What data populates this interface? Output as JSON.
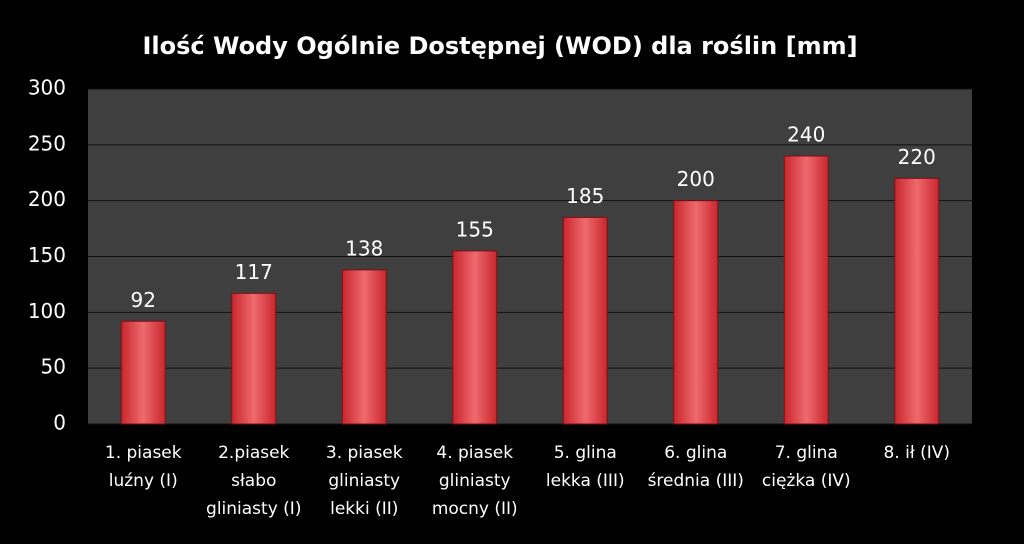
{
  "chart_data": {
    "type": "bar",
    "title": "Ilość Wody Ogólnie Dostępnej (WOD) dla roślin [mm]",
    "categories": [
      "1. piasek\nluźny (I)",
      "2.piasek\nsłabo\ngliniasty (I)",
      "3. piasek\ngliniasty\nlekki (II)",
      "4. piasek\ngliniasty\nmocny (II)",
      "5. glina\nlekka (III)",
      "6. glina\nśrednia (III)",
      "7. glina\nciężka (IV)",
      "8. ił (IV)"
    ],
    "values": [
      92,
      117,
      138,
      155,
      185,
      200,
      240,
      220
    ],
    "color": "#c8262c",
    "ylim": [
      0,
      300
    ],
    "yticks": [
      0,
      50,
      100,
      150,
      200,
      250,
      300
    ],
    "grid": true
  }
}
